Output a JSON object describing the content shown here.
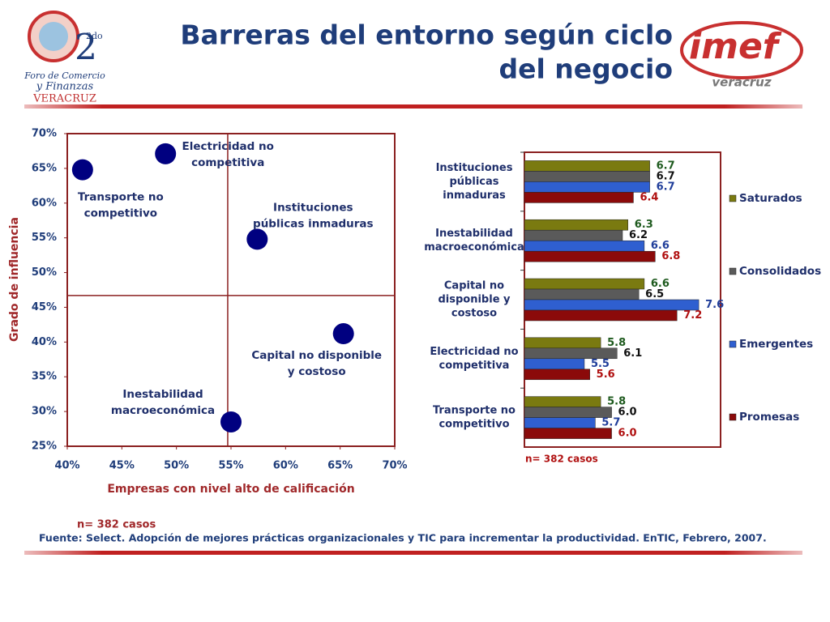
{
  "header": {
    "title": [
      "Barreras del entorno según ciclo",
      "del negocio"
    ],
    "left_logo": {
      "edition": "2do",
      "lines": [
        "Foro de Comercio",
        "y Finanzas",
        "VERACRUZ"
      ]
    },
    "right_logo": {
      "name": "imef",
      "city": "veracruz"
    }
  },
  "chart_data": [
    {
      "type": "scatter",
      "xlabel": "Empresas con nivel alto de calificación",
      "ylabel": "Grado de influencia",
      "x": [
        41.4,
        49.0,
        57.4,
        65.3,
        55.0
      ],
      "y": [
        64.8,
        67.1,
        54.8,
        41.2,
        28.5
      ],
      "labels": [
        [
          "Transporte no",
          "competitivo"
        ],
        [
          "Electricidad no",
          "competitiva"
        ],
        [
          "Instituciones",
          "públicas inmaduras"
        ],
        [
          "Capital no disponible",
          "y costoso"
        ],
        [
          "Inestabilidad",
          "macroeconómica"
        ]
      ],
      "color": "#000080",
      "reference_lines": {
        "x": 54.7,
        "y": 46.7
      },
      "xlim": [
        40,
        70
      ],
      "ylim": [
        25,
        70
      ],
      "xticks": [
        {
          "value": 40,
          "label": "40%"
        },
        {
          "value": 45,
          "label": "45%"
        },
        {
          "value": 50,
          "label": "50%"
        },
        {
          "value": 55,
          "label": "55%"
        },
        {
          "value": 60,
          "label": "60%"
        },
        {
          "value": 65,
          "label": "65%"
        },
        {
          "value": 70,
          "label": "70%"
        }
      ],
      "yticks": [
        {
          "value": 25,
          "label": "25%"
        },
        {
          "value": 30,
          "label": "30%"
        },
        {
          "value": 35,
          "label": "35%"
        },
        {
          "value": 40,
          "label": "40%"
        },
        {
          "value": 45,
          "label": "45%"
        },
        {
          "value": 50,
          "label": "50%"
        },
        {
          "value": 55,
          "label": "55%"
        },
        {
          "value": 60,
          "label": "60%"
        },
        {
          "value": 65,
          "label": "65%"
        },
        {
          "value": 70,
          "label": "70%"
        }
      ]
    },
    {
      "type": "hbar",
      "note": "n= 382 casos",
      "legend": "right",
      "xlim": [
        4.4,
        8.0
      ],
      "categories": [
        [
          "Instituciones",
          "públicas",
          "inmaduras"
        ],
        [
          "Inestabilidad",
          "macroeconómica"
        ],
        [
          "Capital no",
          "disponible y",
          "costoso"
        ],
        [
          "Electricidad no",
          "competitiva"
        ],
        [
          "Transporte no",
          "competitivo"
        ]
      ],
      "series": [
        {
          "name": "Saturados",
          "color": "#7a7a10",
          "label_color": "#1e5a1e",
          "values": [
            6.7,
            6.3,
            6.6,
            5.8,
            5.8
          ],
          "value_labels": [
            "6.7",
            "6.3",
            "6.6",
            "5.8",
            "5.8"
          ]
        },
        {
          "name": "Consolidados",
          "color": "#5a5a5a",
          "label_color": "#111111",
          "values": [
            6.7,
            6.2,
            6.5,
            6.1,
            6.0
          ],
          "value_labels": [
            "6.7",
            "6.2",
            "6.5",
            "6.1",
            "6.0"
          ]
        },
        {
          "name": "Emergentes",
          "color": "#2f5fd0",
          "label_color": "#1f3d9a",
          "values": [
            6.7,
            6.6,
            7.6,
            5.5,
            5.7
          ],
          "value_labels": [
            "6.7",
            "6.6",
            "7.6",
            "5.5",
            "5.7"
          ]
        },
        {
          "name": "Promesas",
          "color": "#8b0a0a",
          "label_color": "#b01010",
          "values": [
            6.4,
            6.8,
            7.2,
            5.6,
            6.0
          ],
          "value_labels": [
            "6.4",
            "6.8",
            "7.2",
            "5.6",
            "6.0"
          ]
        }
      ]
    }
  ],
  "footer": {
    "note": "n= 382 casos",
    "source": "Fuente: Select. Adopción de mejores prácticas organizacionales y TIC para incrementar la productividad. EnTIC, Febrero, 2007."
  }
}
